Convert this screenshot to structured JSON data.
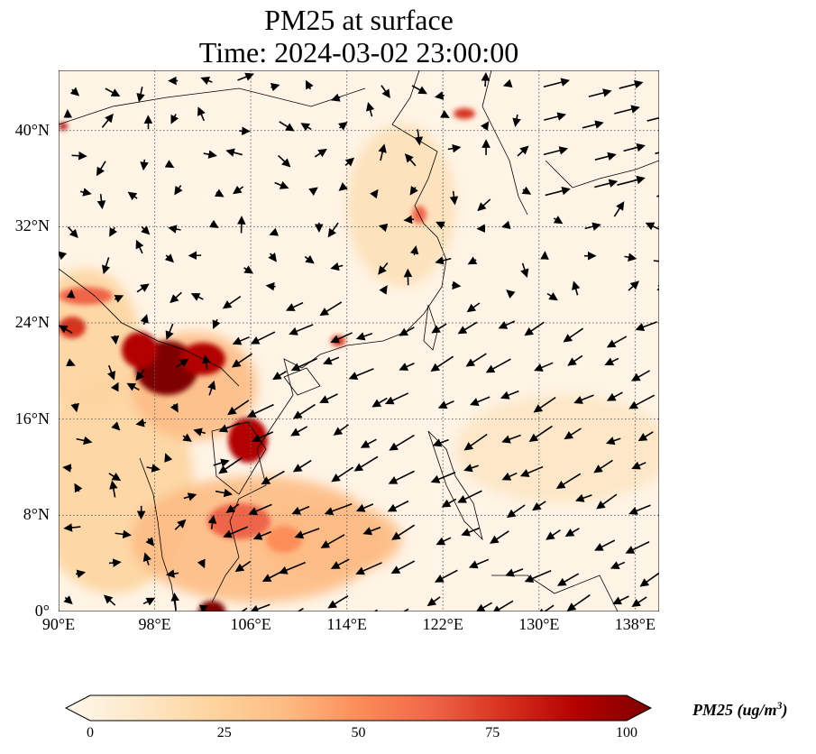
{
  "title": {
    "line1": "PM25 at surface",
    "line2": "Time: 2024-03-02 23:00:00"
  },
  "map": {
    "lon_range": [
      90,
      140
    ],
    "lat_range": [
      0,
      45
    ],
    "lat_ticks": [
      "0°",
      "8°N",
      "16°N",
      "24°N",
      "32°N",
      "40°N"
    ],
    "lat_values": [
      0,
      8,
      16,
      24,
      32,
      40
    ],
    "lon_ticks": [
      "90°E",
      "98°E",
      "106°E",
      "114°E",
      "122°E",
      "130°E",
      "138°E"
    ],
    "lon_values": [
      90,
      98,
      106,
      114,
      122,
      130,
      138
    ],
    "wind_vectors": "arrows"
  },
  "colorbar": {
    "label": "PM25 (ug/m",
    "label_sup": "3",
    "label_end": ")",
    "ticks": [
      "0",
      "25",
      "50",
      "75",
      "100"
    ],
    "range": [
      0,
      100
    ],
    "colors": [
      "#fff7ec",
      "#fee8c8",
      "#fdd49e",
      "#fdbb84",
      "#fc8d59",
      "#ef6548",
      "#d7301f",
      "#b30000",
      "#7f0000"
    ]
  }
}
